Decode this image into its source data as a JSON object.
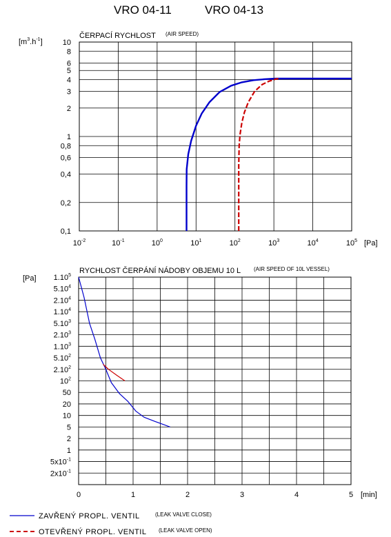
{
  "header": {
    "title_left": "VRO 04-11",
    "title_right": "VRO 04-13"
  },
  "chart_data": [
    {
      "type": "line",
      "title": "ČERPACÍ RYCHLOST",
      "subtitle": "(AIR SPEED)",
      "xlabel": "[Pa]",
      "ylabel": "[m3.h-1]",
      "x_scale": "log",
      "y_scale": "log",
      "xlim": [
        0.01,
        100000
      ],
      "ylim": [
        0.1,
        10
      ],
      "grid": true,
      "x_ticks": [
        {
          "value": 0.01,
          "base": "10",
          "exp": "-2"
        },
        {
          "value": 0.1,
          "base": "10",
          "exp": "-1"
        },
        {
          "value": 1,
          "base": "10",
          "exp": "0"
        },
        {
          "value": 10,
          "base": "10",
          "exp": "1"
        },
        {
          "value": 100,
          "base": "10",
          "exp": "2"
        },
        {
          "value": 1000,
          "base": "10",
          "exp": "3"
        },
        {
          "value": 10000,
          "base": "10",
          "exp": "4"
        },
        {
          "value": 100000,
          "base": "10",
          "exp": "5"
        }
      ],
      "y_ticks": [
        {
          "value": 0.1,
          "label": "0,1"
        },
        {
          "value": 0.2,
          "label": "0,2"
        },
        {
          "value": 0.4,
          "label": "0,4"
        },
        {
          "value": 0.6,
          "label": "0,6"
        },
        {
          "value": 0.8,
          "label": "0,8"
        },
        {
          "value": 1,
          "label": "1"
        },
        {
          "value": 2,
          "label": "2"
        },
        {
          "value": 3,
          "label": "3"
        },
        {
          "value": 4,
          "label": "4"
        },
        {
          "value": 5,
          "label": "5"
        },
        {
          "value": 6,
          "label": "6"
        },
        {
          "value": 8,
          "label": "8"
        },
        {
          "value": 10,
          "label": "10"
        }
      ],
      "series": [
        {
          "name": "ZAVŘENÝ PROPL. VENTIL",
          "color": "#0000cc",
          "dash": "solid",
          "points": [
            [
              5.7,
              0.1
            ],
            [
              5.7,
              0.3
            ],
            [
              5.75,
              0.45
            ],
            [
              6.3,
              0.65
            ],
            [
              7.5,
              0.9
            ],
            [
              10,
              1.3
            ],
            [
              14,
              1.75
            ],
            [
              22,
              2.3
            ],
            [
              40,
              2.95
            ],
            [
              80,
              3.45
            ],
            [
              150,
              3.75
            ],
            [
              300,
              3.95
            ],
            [
              600,
              4.05
            ],
            [
              1100,
              4.1
            ],
            [
              100000,
              4.1
            ]
          ]
        },
        {
          "name": "OTEVŘENÝ PROPL. VENTIL",
          "color": "#cc0000",
          "dash": "dashed",
          "points": [
            [
              125,
              0.1
            ],
            [
              125,
              0.5
            ],
            [
              128,
              0.8
            ],
            [
              135,
              1.05
            ],
            [
              150,
              1.4
            ],
            [
              175,
              1.8
            ],
            [
              220,
              2.3
            ],
            [
              320,
              3.0
            ],
            [
              500,
              3.55
            ],
            [
              750,
              3.85
            ],
            [
              1100,
              4.05
            ],
            [
              1300,
              4.1
            ]
          ]
        }
      ]
    },
    {
      "type": "line",
      "title": "RYCHLOST ČERPÁNÍ NÁDOBY OBJEMU 10 L",
      "subtitle": "(AIR SPEED OF 10L VESSEL)",
      "xlabel": "[min]",
      "ylabel": "[Pa]",
      "y_scale": "log",
      "xlim": [
        0,
        5
      ],
      "grid": true,
      "x_ticks": [
        {
          "value": 0,
          "label": "0"
        },
        {
          "value": 1,
          "label": "1"
        },
        {
          "value": 2,
          "label": "2"
        },
        {
          "value": 3,
          "label": "3"
        },
        {
          "value": 4,
          "label": "4"
        },
        {
          "value": 5,
          "label": "5"
        }
      ],
      "y_ticks": [
        {
          "value": 100000,
          "base": "1.10",
          "exp": "5"
        },
        {
          "value": 50000,
          "base": "5.10",
          "exp": "4"
        },
        {
          "value": 20000,
          "base": "2.10",
          "exp": "4"
        },
        {
          "value": 10000,
          "base": "1.10",
          "exp": "4"
        },
        {
          "value": 5000,
          "base": "5.10",
          "exp": "3"
        },
        {
          "value": 2000,
          "base": "2.10",
          "exp": "3"
        },
        {
          "value": 1000,
          "base": "1.10",
          "exp": "3"
        },
        {
          "value": 500,
          "base": "5.10",
          "exp": "2"
        },
        {
          "value": 200,
          "base": "2.10",
          "exp": "2"
        },
        {
          "value": 100,
          "base": "10",
          "exp": "2"
        },
        {
          "value": 50,
          "base": "50",
          "exp": ""
        },
        {
          "value": 20,
          "base": "20",
          "exp": ""
        },
        {
          "value": 10,
          "base": "10",
          "exp": ""
        },
        {
          "value": 5,
          "base": "5",
          "exp": ""
        },
        {
          "value": 2,
          "base": "2",
          "exp": ""
        },
        {
          "value": 1,
          "base": "1",
          "exp": ""
        },
        {
          "value": 0.5,
          "base": "5x10",
          "exp": "-1"
        },
        {
          "value": 0.2,
          "base": "2x10",
          "exp": "-1"
        }
      ],
      "series": [
        {
          "name": "ZAVŘENÝ PROPL. VENTIL",
          "color": "#0000cc",
          "dash": "solid",
          "points": [
            [
              0,
              100000
            ],
            [
              0.1,
              25000
            ],
            [
              0.2,
              5000
            ],
            [
              0.3,
              1500
            ],
            [
              0.4,
              500
            ],
            [
              0.5,
              200
            ],
            [
              0.6,
              90
            ],
            [
              0.75,
              45
            ],
            [
              0.9,
              25
            ],
            [
              1.05,
              13
            ],
            [
              1.2,
              9
            ],
            [
              1.4,
              7
            ],
            [
              1.6,
              5.5
            ],
            [
              1.68,
              5
            ]
          ]
        },
        {
          "name": "OTEVŘENÝ PROPL. VENTIL",
          "color": "#cc0000",
          "dash": "solid",
          "points": [
            [
              0.45,
              300
            ],
            [
              0.55,
              200
            ],
            [
              0.7,
              140
            ],
            [
              0.85,
              100
            ]
          ]
        }
      ]
    }
  ],
  "legend": [
    {
      "label": "ZAVŘENÝ PROPL. VENTIL",
      "note": "(LEAK VALVE CLOSE)",
      "color": "#0000cc",
      "dash": "solid"
    },
    {
      "label": "OTEVŘENÝ PROPL. VENTIL",
      "note": "(LEAK VALVE OPEN)",
      "color": "#cc0000",
      "dash": "dashed"
    }
  ]
}
